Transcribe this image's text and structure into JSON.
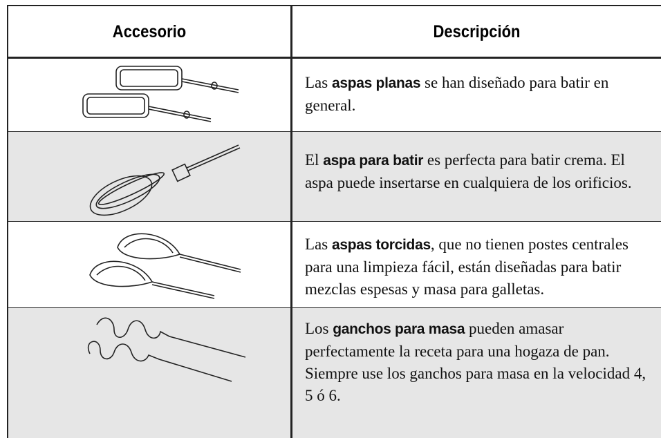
{
  "table": {
    "header": [
      "Accesorio",
      "Descripción"
    ],
    "rows": [
      {
        "before": "Las ",
        "bold": "aspas planas",
        "after": " se han diseñado para batir en general."
      },
      {
        "before": "El ",
        "bold": "aspa para batir",
        "after": " es perfecta para batir crema. El aspa puede insertarse en cualquiera de los orificios."
      },
      {
        "before": "Las ",
        "bold": "aspas torcidas",
        "after": ", que no tienen postes centrales para una limpieza fácil, están diseñadas para batir mezclas espesas y masa para galletas."
      },
      {
        "before": "Los ",
        "bold": "ganchos para masa",
        "after": " pueden amasar perfectamente la receta para una hogaza de pan. Siempre use los ganchos para masa en la velocidad 4, 5 ó 6."
      }
    ]
  }
}
